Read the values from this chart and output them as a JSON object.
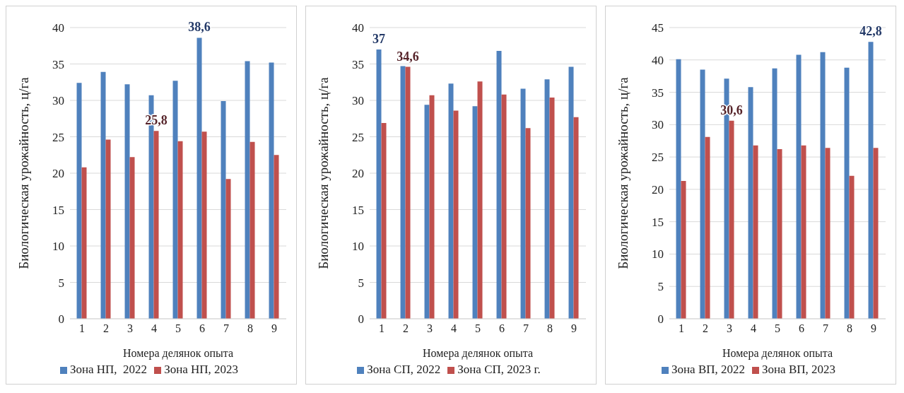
{
  "chart_data": [
    {
      "type": "bar",
      "xlabel": "Номера делянок опыта",
      "ylabel": "Биологическая урожайность, ц/га",
      "categories": [
        "1",
        "2",
        "3",
        "4",
        "5",
        "6",
        "7",
        "8",
        "9"
      ],
      "series": [
        {
          "name": "Зона НП,  2022",
          "color": "#4f81bd",
          "values": [
            32.4,
            33.9,
            32.2,
            30.7,
            32.7,
            38.6,
            29.9,
            35.4,
            35.2
          ],
          "value_labels": [
            null,
            null,
            null,
            null,
            null,
            "38,6",
            null,
            null,
            null
          ]
        },
        {
          "name": "Зона НП, 2023",
          "color": "#c0504d",
          "values": [
            20.8,
            24.6,
            22.2,
            25.8,
            24.4,
            25.7,
            19.2,
            24.3,
            22.5
          ],
          "value_labels": [
            null,
            null,
            null,
            "25,8",
            null,
            null,
            null,
            null,
            null
          ]
        }
      ],
      "ylim": [
        0,
        40
      ],
      "yticks": [
        0,
        5,
        10,
        15,
        20,
        25,
        30,
        35,
        40
      ],
      "grid": "y",
      "legend": "bottom"
    },
    {
      "type": "bar",
      "xlabel": "Номера делянок опыта",
      "ylabel": "Биологическая урожайность, ц/га",
      "categories": [
        "1",
        "2",
        "3",
        "4",
        "5",
        "6",
        "7",
        "8",
        "9"
      ],
      "series": [
        {
          "name": "Зона СП, 2022",
          "color": "#4f81bd",
          "values": [
            37,
            34.7,
            29.4,
            32.3,
            29.2,
            36.8,
            31.6,
            32.9,
            34.6
          ],
          "value_labels": [
            "37",
            null,
            null,
            null,
            null,
            null,
            null,
            null,
            null
          ]
        },
        {
          "name": "Зона СП, 2023 г.",
          "color": "#c0504d",
          "values": [
            26.9,
            34.6,
            30.7,
            28.6,
            32.6,
            30.8,
            26.2,
            30.4,
            27.7
          ],
          "value_labels": [
            null,
            "34,6",
            null,
            null,
            null,
            null,
            null,
            null,
            null
          ]
        }
      ],
      "ylim": [
        0,
        40
      ],
      "yticks": [
        0,
        5,
        10,
        15,
        20,
        25,
        30,
        35,
        40
      ],
      "grid": "y",
      "legend": "bottom"
    },
    {
      "type": "bar",
      "xlabel": "Номера делянок опыта",
      "ylabel": "Биологическая урожайность, ц/га",
      "categories": [
        "1",
        "2",
        "3",
        "4",
        "5",
        "6",
        "7",
        "8",
        "9"
      ],
      "series": [
        {
          "name": "Зона ВП, 2022",
          "color": "#4f81bd",
          "values": [
            40.1,
            38.5,
            37.1,
            35.8,
            38.7,
            40.8,
            41.2,
            38.8,
            42.8
          ],
          "value_labels": [
            null,
            null,
            null,
            null,
            null,
            null,
            null,
            null,
            "42,8"
          ]
        },
        {
          "name": "Зона ВП, 2023",
          "color": "#c0504d",
          "values": [
            21.3,
            28.1,
            30.6,
            26.8,
            26.2,
            26.8,
            26.4,
            22.1,
            26.4
          ],
          "value_labels": [
            null,
            null,
            "30,6",
            null,
            null,
            null,
            null,
            null,
            null
          ]
        }
      ],
      "ylim": [
        0,
        45
      ],
      "yticks": [
        0,
        5,
        10,
        15,
        20,
        25,
        30,
        35,
        40,
        45
      ],
      "grid": "y",
      "legend": "bottom"
    }
  ]
}
